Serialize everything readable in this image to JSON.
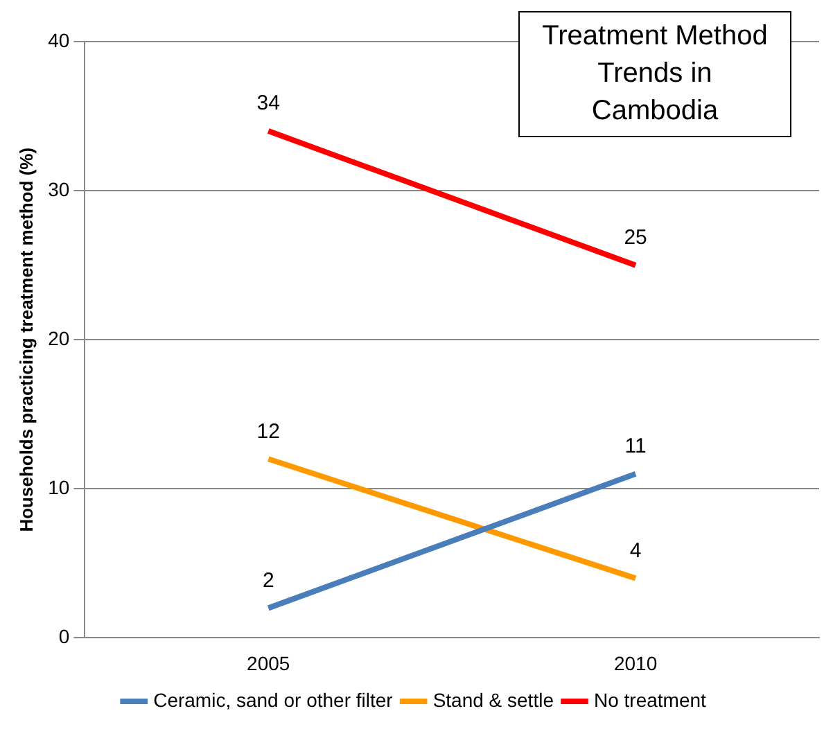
{
  "chart_data": {
    "type": "line",
    "title": "Treatment Method Trends in Cambodia",
    "ylabel": "Households practicing treatment method (%)",
    "categories": [
      "2005",
      "2010"
    ],
    "series": [
      {
        "name": "Ceramic, sand or other filter",
        "color": "#4a7ebb",
        "values": [
          2,
          11
        ]
      },
      {
        "name": "Stand & settle",
        "color": "#ff9900",
        "values": [
          12,
          4
        ]
      },
      {
        "name": "No treatment",
        "color": "#ff0000",
        "values": [
          34,
          25
        ]
      }
    ],
    "ylim": [
      0,
      40
    ],
    "yticks": [
      0,
      10,
      20,
      30,
      40
    ],
    "grid": "y",
    "legend": "bottom",
    "marker": "none",
    "line_style": "solid",
    "data_labels": true
  }
}
